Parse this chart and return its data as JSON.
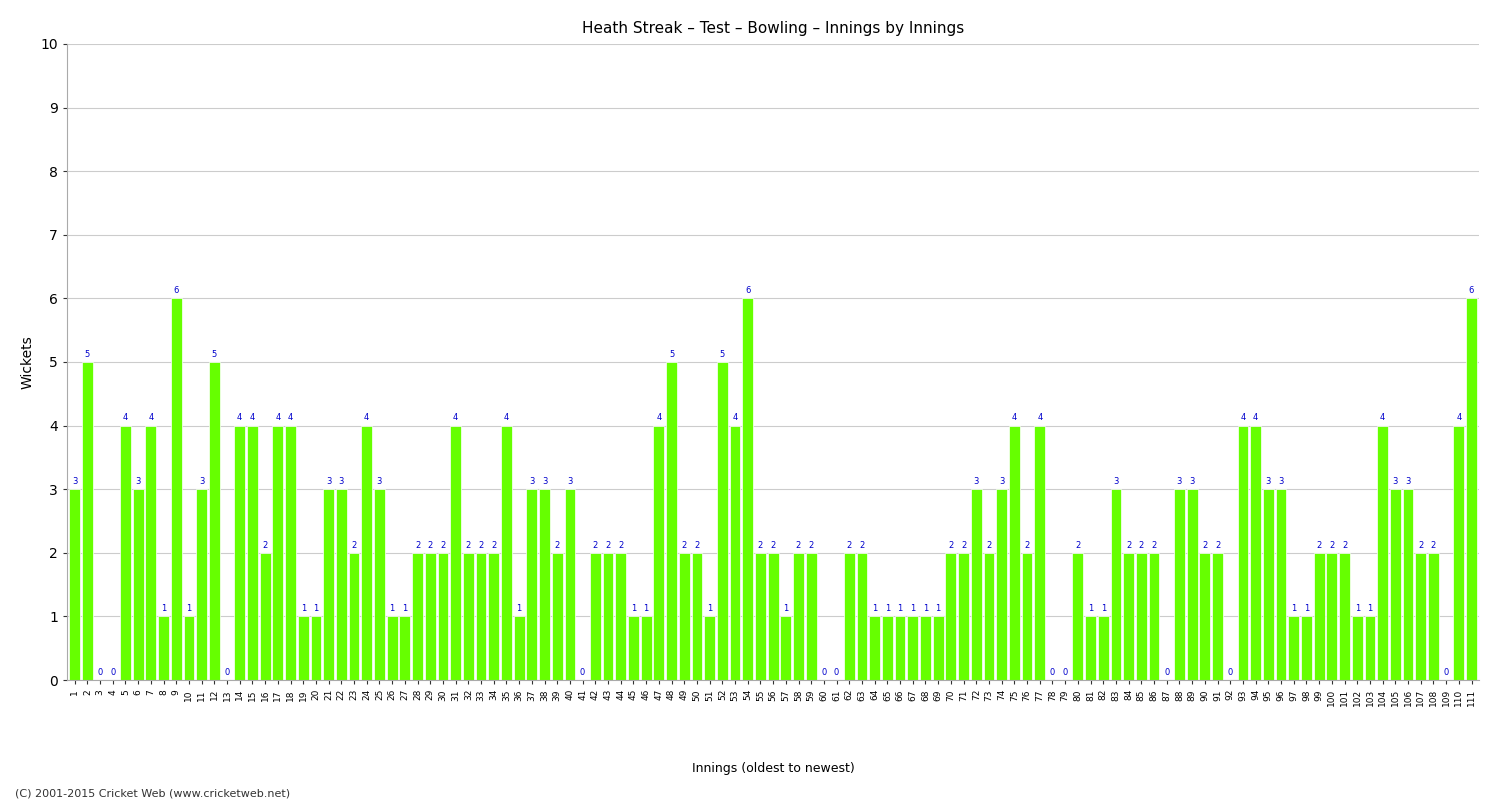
{
  "title": "Heath Streak – Test – Bowling – Innings by Innings",
  "ylabel": "Wickets",
  "xlabel": "Innings (oldest to newest)",
  "footer": "(C) 2001-2015 Cricket Web (www.cricketweb.net)",
  "ylim": [
    0,
    10
  ],
  "yticks": [
    0,
    1,
    2,
    3,
    4,
    5,
    6,
    7,
    8,
    9,
    10
  ],
  "bar_color": "#66ff00",
  "bar_edge_color": "#66ff00",
  "label_color": "#0000cc",
  "bg_color": "#ffffff",
  "plot_bg_color": "#ffffff",
  "grid_color": "#cccccc",
  "values": [
    3,
    5,
    0,
    0,
    4,
    3,
    4,
    1,
    6,
    1,
    3,
    5,
    0,
    4,
    4,
    2,
    4,
    4,
    1,
    1,
    3,
    3,
    2,
    4,
    3,
    1,
    1,
    2,
    2,
    2,
    4,
    2,
    2,
    2,
    4,
    1,
    3,
    3,
    2,
    3,
    0,
    2,
    2,
    2,
    1,
    1,
    4,
    5,
    2,
    2,
    1,
    5,
    4,
    6,
    2,
    2,
    1,
    2,
    2,
    0,
    0,
    2,
    2,
    1,
    1,
    1,
    1,
    1,
    1,
    2,
    2,
    3,
    2,
    3,
    4,
    2,
    4,
    0,
    0,
    2,
    1,
    1,
    3,
    2,
    2,
    2,
    0,
    3,
    3,
    2,
    2,
    0,
    4,
    4,
    3,
    3,
    1,
    1,
    2,
    2,
    2,
    1,
    1,
    4,
    3,
    3,
    2,
    2,
    0,
    4,
    6
  ],
  "x_labels": [
    "1",
    "2",
    "3",
    "4",
    "5",
    "6",
    "7",
    "8",
    "9",
    "10",
    "11",
    "12",
    "13",
    "14",
    "15",
    "16",
    "17",
    "18",
    "19",
    "20",
    "21",
    "22",
    "23",
    "24",
    "25",
    "26",
    "27",
    "28",
    "29",
    "30",
    "31",
    "32",
    "33",
    "34",
    "35",
    "36",
    "37",
    "38",
    "39",
    "40",
    "41",
    "42",
    "43",
    "44",
    "45",
    "46",
    "47",
    "48",
    "49",
    "50",
    "51",
    "52",
    "53",
    "54",
    "55",
    "56",
    "57",
    "58",
    "59",
    "60",
    "61",
    "62",
    "63",
    "64",
    "65",
    "66",
    "67",
    "68",
    "69",
    "70",
    "71",
    "72",
    "73",
    "74",
    "75",
    "76",
    "77",
    "78",
    "79",
    "80",
    "81",
    "82",
    "83",
    "84",
    "85",
    "86",
    "87",
    "88",
    "89",
    "90",
    "91",
    "92",
    "93",
    "94",
    "95",
    "96",
    "97",
    "98",
    "99",
    "100",
    "101",
    "102",
    "103",
    "104",
    "105",
    "106",
    "107",
    "108",
    "109",
    "110",
    "111"
  ]
}
